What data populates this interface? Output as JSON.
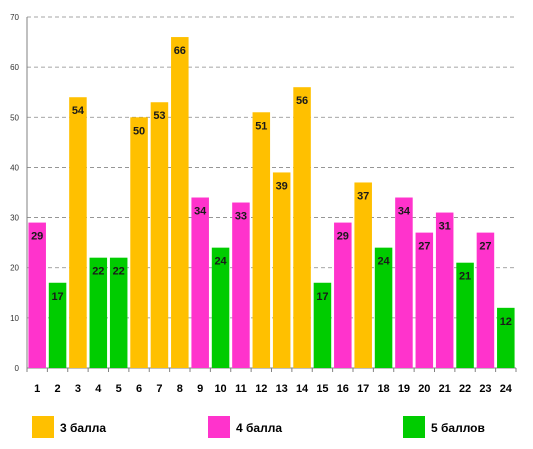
{
  "chart_data": {
    "type": "bar",
    "categories": [
      "1",
      "2",
      "3",
      "4",
      "5",
      "6",
      "7",
      "8",
      "9",
      "10",
      "11",
      "12",
      "13",
      "14",
      "15",
      "16",
      "17",
      "18",
      "19",
      "20",
      "21",
      "22",
      "23",
      "24"
    ],
    "values": [
      29,
      17,
      54,
      22,
      22,
      50,
      53,
      66,
      34,
      24,
      33,
      51,
      39,
      56,
      17,
      29,
      37,
      24,
      34,
      27,
      31,
      21,
      27,
      12
    ],
    "groups": [
      "4 балла",
      "5 баллов",
      "3 балла",
      "5 баллов",
      "5 баллов",
      "3 балла",
      "3 балла",
      "3 балла",
      "4 балла",
      "5 баллов",
      "4 балла",
      "3 балла",
      "3 балла",
      "3 балла",
      "5 баллов",
      "4 балла",
      "3 балла",
      "5 баллов",
      "4 балла",
      "4 балла",
      "4 балла",
      "5 баллов",
      "4 балла",
      "5 баллов"
    ],
    "series": [
      {
        "name": "3 балла",
        "color": "#FFC000"
      },
      {
        "name": "4 балла",
        "color": "#FF33CC"
      },
      {
        "name": "5 баллов",
        "color": "#00CC00"
      }
    ],
    "ylim": [
      0,
      70
    ],
    "yticks": [
      0,
      10,
      20,
      30,
      40,
      50,
      60,
      70
    ],
    "grid": true,
    "grid_style": "dashed",
    "legend_position": "bottom"
  }
}
